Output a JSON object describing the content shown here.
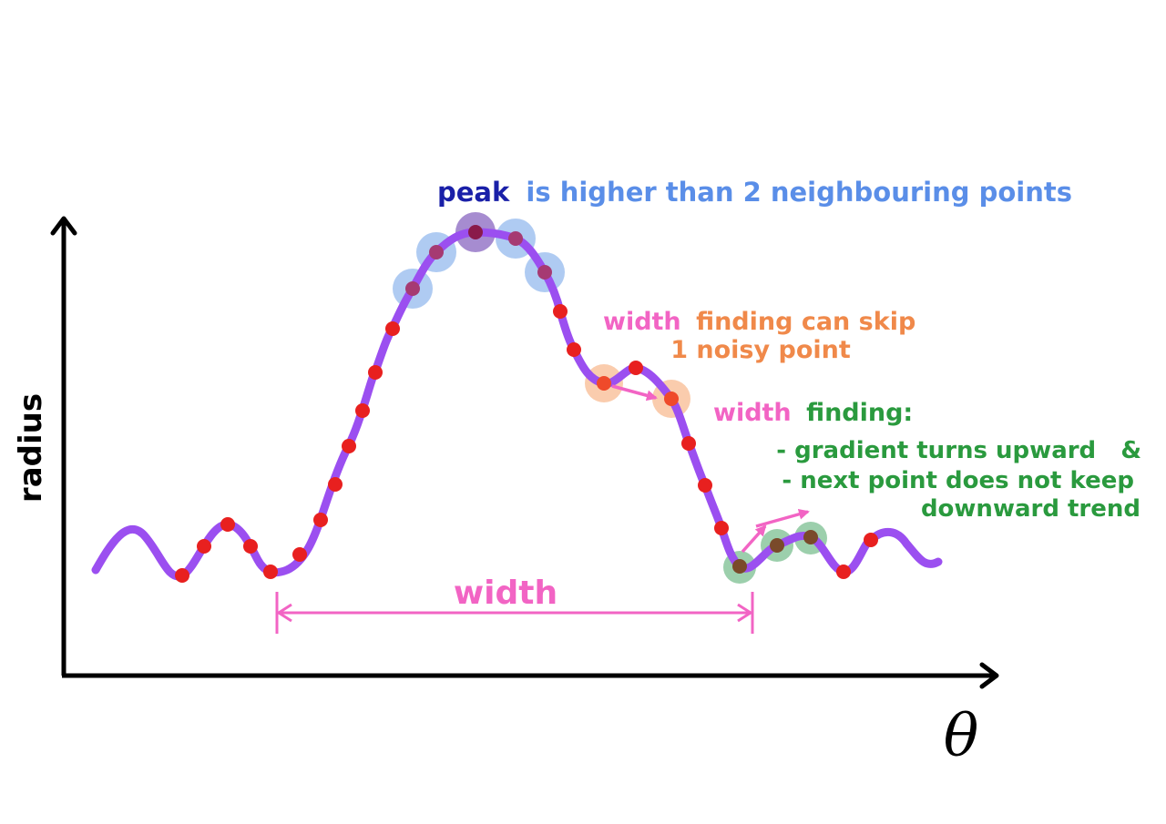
{
  "axes": {
    "y_label": "radius",
    "x_label": "θ"
  },
  "annotations": {
    "peak": {
      "word": "peak",
      "rest": "is higher than 2 neighbouring points"
    },
    "skip": {
      "word": "width",
      "rest_line1": "finding can skip",
      "line2": "1 noisy point"
    },
    "finding": {
      "word": "width",
      "rest": "finding:",
      "bullet1": "- gradient turns upward   &",
      "bullet2": "- next point does not keep",
      "bullet3": "downward trend"
    },
    "width_label": "width"
  },
  "colors": {
    "curve": "#9b4ff0",
    "point": "#e8201f",
    "peak_highlight": "#6a3fb0",
    "neighbour_highlight": "#6ea0e8",
    "skip_highlight": "#f59a5c",
    "finding_highlight": "#3aa05a",
    "width_pink": "#f264c4",
    "peak_word": "#1a20a8",
    "peak_text": "#5a8ee8",
    "skip_text": "#f0894a",
    "finding_text": "#2a9a3e",
    "axis": "#000000"
  }
}
